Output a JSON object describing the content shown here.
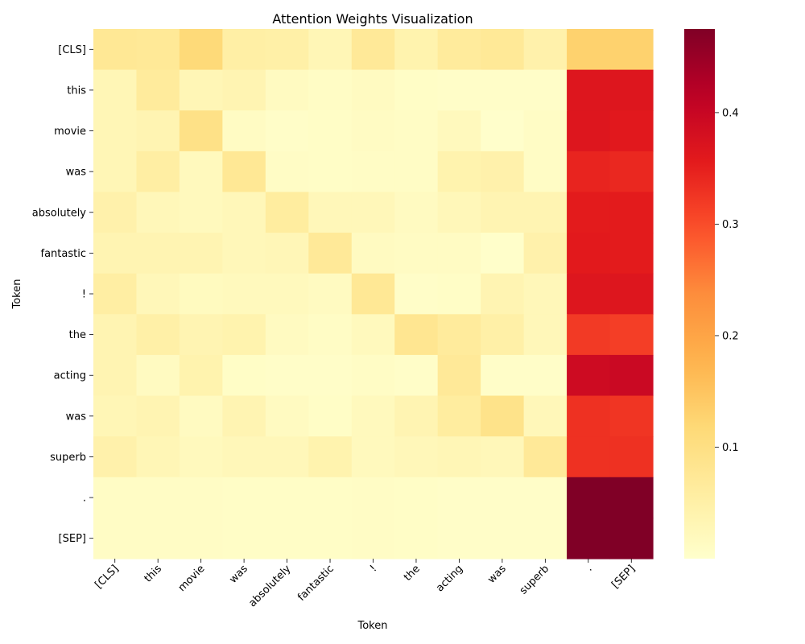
{
  "chart_data": {
    "type": "heatmap",
    "title": "Attention Weights Visualization",
    "xlabel": "Token",
    "ylabel": "Token",
    "x_tokens": [
      "[CLS]",
      "this",
      "movie",
      "was",
      "absolutely",
      "fantastic",
      "!",
      "the",
      "acting",
      "was",
      "superb",
      ".",
      "[SEP]"
    ],
    "y_tokens": [
      "[CLS]",
      "this",
      "movie",
      "was",
      "absolutely",
      "fantastic",
      "!",
      "the",
      "acting",
      "was",
      "superb",
      ".",
      "[SEP]"
    ],
    "values": [
      [
        0.075,
        0.072,
        0.115,
        0.052,
        0.05,
        0.03,
        0.07,
        0.04,
        0.065,
        0.072,
        0.045,
        0.13,
        0.13
      ],
      [
        0.03,
        0.065,
        0.03,
        0.035,
        0.015,
        0.01,
        0.015,
        0.008,
        0.005,
        0.005,
        0.005,
        0.365,
        0.365
      ],
      [
        0.03,
        0.035,
        0.095,
        0.012,
        0.005,
        0.008,
        0.012,
        0.01,
        0.02,
        0.002,
        0.01,
        0.365,
        0.36
      ],
      [
        0.03,
        0.055,
        0.02,
        0.075,
        0.01,
        0.008,
        0.01,
        0.01,
        0.04,
        0.045,
        0.01,
        0.345,
        0.34
      ],
      [
        0.045,
        0.025,
        0.02,
        0.025,
        0.06,
        0.025,
        0.025,
        0.015,
        0.025,
        0.035,
        0.035,
        0.355,
        0.355
      ],
      [
        0.035,
        0.035,
        0.035,
        0.025,
        0.028,
        0.07,
        0.015,
        0.012,
        0.012,
        0.003,
        0.045,
        0.358,
        0.355
      ],
      [
        0.055,
        0.025,
        0.018,
        0.02,
        0.02,
        0.015,
        0.075,
        0.005,
        0.008,
        0.035,
        0.025,
        0.365,
        0.365
      ],
      [
        0.035,
        0.05,
        0.035,
        0.04,
        0.015,
        0.01,
        0.02,
        0.08,
        0.065,
        0.05,
        0.025,
        0.32,
        0.315
      ],
      [
        0.035,
        0.015,
        0.04,
        0.008,
        0.005,
        0.005,
        0.01,
        0.005,
        0.07,
        0.005,
        0.005,
        0.39,
        0.395
      ],
      [
        0.03,
        0.035,
        0.015,
        0.035,
        0.015,
        0.008,
        0.02,
        0.035,
        0.06,
        0.09,
        0.025,
        0.33,
        0.325
      ],
      [
        0.045,
        0.03,
        0.02,
        0.025,
        0.025,
        0.04,
        0.02,
        0.025,
        0.03,
        0.025,
        0.07,
        0.33,
        0.33
      ],
      [
        0.01,
        0.01,
        0.01,
        0.008,
        0.008,
        0.008,
        0.01,
        0.008,
        0.005,
        0.005,
        0.005,
        0.475,
        0.475
      ],
      [
        0.01,
        0.01,
        0.01,
        0.008,
        0.008,
        0.008,
        0.01,
        0.008,
        0.005,
        0.005,
        0.005,
        0.475,
        0.475
      ]
    ],
    "colormap": "YlOrRd",
    "colorbar_range": [
      0.0,
      0.475
    ],
    "colorbar_ticks": [
      0.1,
      0.2,
      0.3,
      0.4
    ]
  }
}
